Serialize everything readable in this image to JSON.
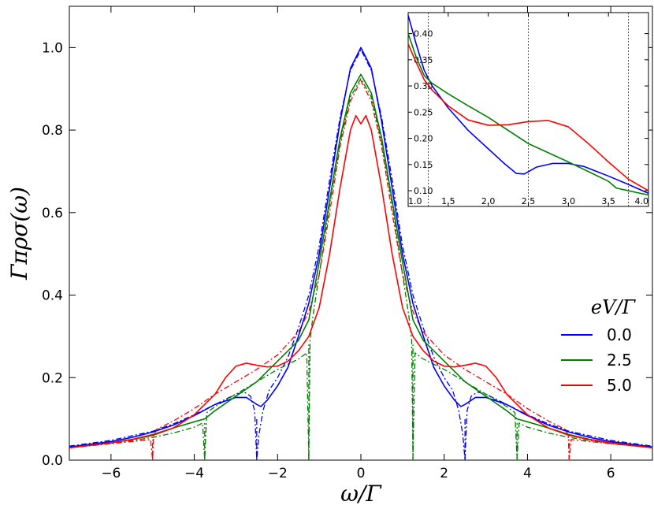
{
  "chart_data": [
    {
      "type": "line",
      "title": "",
      "xlabel": "ω/Γ",
      "ylabel": "Γπρσ(ω)",
      "xlim": [
        -7,
        7
      ],
      "ylim": [
        0,
        1.1
      ],
      "xticks": [
        "−6",
        "−4",
        "−2",
        "0",
        "2",
        "4",
        "6"
      ],
      "xtick_values": [
        -6,
        -4,
        -2,
        0,
        2,
        4,
        6
      ],
      "yticks": [
        "0.0",
        "0.2",
        "0.4",
        "0.6",
        "0.8",
        "1.0"
      ],
      "ytick_values": [
        0,
        0.2,
        0.4,
        0.6,
        0.8,
        1.0
      ],
      "grid": false,
      "legend": {
        "title": "eV/Γ",
        "placement": "right",
        "entries": [
          "0.0",
          "2.5",
          "5.0"
        ]
      },
      "series": [
        {
          "name": "0.0",
          "color": "#0000ff",
          "style": "solid",
          "x": [
            0,
            0.25,
            0.5,
            0.75,
            1,
            1.25,
            1.5,
            1.75,
            2,
            2.25,
            2.4,
            2.5,
            2.75,
            3,
            3.5,
            4,
            4.5,
            5,
            5.5,
            6,
            7
          ],
          "y": [
            1.0,
            0.95,
            0.82,
            0.66,
            0.5,
            0.38,
            0.3,
            0.225,
            0.18,
            0.145,
            0.13,
            0.135,
            0.152,
            0.152,
            0.135,
            0.108,
            0.085,
            0.068,
            0.055,
            0.045,
            0.032
          ]
        },
        {
          "name": "2.5",
          "color": "#008000",
          "style": "solid",
          "x": [
            0,
            0.25,
            0.5,
            0.75,
            1,
            1.25,
            1.5,
            2,
            2.5,
            3,
            3.5,
            3.75,
            4,
            4.5,
            5,
            5.5,
            6,
            7
          ],
          "y": [
            0.935,
            0.89,
            0.78,
            0.63,
            0.48,
            0.34,
            0.29,
            0.24,
            0.19,
            0.155,
            0.12,
            0.1,
            0.093,
            0.078,
            0.062,
            0.05,
            0.042,
            0.03
          ]
        },
        {
          "name": "5.0",
          "color": "#ff0000",
          "style": "solid",
          "x": [
            0,
            0.12,
            0.25,
            0.5,
            0.75,
            1,
            1.25,
            1.5,
            1.75,
            2,
            2.25,
            2.5,
            2.75,
            3,
            3.25,
            3.5,
            4,
            4.5,
            5,
            5.5,
            6,
            7
          ],
          "y": [
            0.815,
            0.835,
            0.8,
            0.66,
            0.5,
            0.37,
            0.3,
            0.265,
            0.24,
            0.228,
            0.226,
            0.23,
            0.235,
            0.228,
            0.2,
            0.16,
            0.11,
            0.078,
            0.06,
            0.05,
            0.042,
            0.03
          ]
        },
        {
          "name": "",
          "color": "#0000ff",
          "style": "dashdot",
          "x": [
            0,
            0.25,
            0.5,
            0.75,
            1,
            1.25,
            1.5,
            1.75,
            2,
            2.2,
            2.35,
            2.45,
            2.5,
            2.5,
            2.55,
            2.65,
            2.8,
            3,
            3.5,
            4,
            4.5,
            5,
            6,
            7
          ],
          "y": [
            0.995,
            0.945,
            0.83,
            0.68,
            0.52,
            0.4,
            0.32,
            0.25,
            0.2,
            0.17,
            0.12,
            0.06,
            0.0,
            0.0,
            0.12,
            0.155,
            0.165,
            0.16,
            0.135,
            0.11,
            0.088,
            0.07,
            0.048,
            0.034
          ]
        },
        {
          "name": "",
          "color": "#008000",
          "style": "dashdot",
          "x": [
            0,
            0.25,
            0.5,
            0.75,
            1,
            1.15,
            1.22,
            1.25,
            1.25,
            1.3,
            1.5,
            2,
            2.5,
            3,
            3.5,
            3.7,
            3.75,
            3.75,
            3.8,
            4,
            4.5,
            5,
            6,
            7
          ],
          "y": [
            0.925,
            0.88,
            0.77,
            0.62,
            0.45,
            0.35,
            0.29,
            0.0,
            0.0,
            0.26,
            0.245,
            0.22,
            0.19,
            0.16,
            0.13,
            0.115,
            0.0,
            0.0,
            0.09,
            0.08,
            0.066,
            0.055,
            0.04,
            0.03
          ]
        },
        {
          "name": "",
          "color": "#ff0000",
          "style": "dashdot",
          "x": [
            0,
            0.25,
            0.5,
            0.75,
            1,
            1.25,
            1.5,
            2,
            2.5,
            3,
            3.5,
            4,
            4.5,
            4.9,
            4.98,
            5,
            5,
            5.05,
            5.5,
            6,
            7
          ],
          "y": [
            0.92,
            0.87,
            0.76,
            0.6,
            0.45,
            0.36,
            0.31,
            0.255,
            0.22,
            0.19,
            0.16,
            0.125,
            0.095,
            0.075,
            0.06,
            0.0,
            0.0,
            0.05,
            0.045,
            0.04,
            0.03
          ]
        }
      ],
      "vertical_markers": [
        {
          "x": -5,
          "y": 0.05,
          "color": "#ff0000"
        },
        {
          "x": 5,
          "y": 0.05,
          "color": "#ff0000"
        },
        {
          "x": -3.75,
          "y": 0.09,
          "color": "#008000"
        },
        {
          "x": 3.75,
          "y": 0.09,
          "color": "#008000"
        },
        {
          "x": -1.25,
          "y": 0.28,
          "color": "#008000"
        },
        {
          "x": 1.25,
          "y": 0.28,
          "color": "#008000"
        },
        {
          "x": -2.5,
          "y": 0.1,
          "color": "#0000ff"
        },
        {
          "x": 2.5,
          "y": 0.1,
          "color": "#0000ff"
        }
      ]
    },
    {
      "type": "line",
      "title": "",
      "xlabel": "",
      "ylabel": "",
      "xlim": [
        1.0,
        4.0
      ],
      "ylim": [
        0.07,
        0.44
      ],
      "xticks": [
        "1.0",
        "1.5",
        "2.0",
        "2.5",
        "3.0",
        "3.5",
        "4.0"
      ],
      "xtick_values": [
        1.0,
        1.5,
        2.0,
        2.5,
        3.0,
        3.5,
        4.0
      ],
      "yticks": [
        "0.10",
        "0.15",
        "0.20",
        "0.25",
        "0.30",
        "0.35",
        "0.40"
      ],
      "ytick_values": [
        0.1,
        0.15,
        0.2,
        0.25,
        0.3,
        0.35,
        0.4
      ],
      "grid": false,
      "reference_lines_x": [
        1.25,
        2.5,
        3.75
      ],
      "series": [
        {
          "name": "0.0",
          "color": "#0000ff",
          "x": [
            1.0,
            1.1,
            1.2,
            1.3,
            1.5,
            1.75,
            2.0,
            2.2,
            2.35,
            2.45,
            2.6,
            2.8,
            3.0,
            3.2,
            3.5,
            3.75,
            4.0
          ],
          "y": [
            0.435,
            0.38,
            0.33,
            0.3,
            0.258,
            0.215,
            0.18,
            0.152,
            0.133,
            0.132,
            0.145,
            0.152,
            0.152,
            0.146,
            0.128,
            0.112,
            0.095
          ]
        },
        {
          "name": "2.5",
          "color": "#008000",
          "x": [
            1.0,
            1.1,
            1.2,
            1.3,
            1.5,
            1.75,
            2.0,
            2.5,
            3.0,
            3.5,
            3.6,
            3.75,
            3.9,
            4.0
          ],
          "y": [
            0.4,
            0.355,
            0.32,
            0.305,
            0.285,
            0.262,
            0.24,
            0.19,
            0.155,
            0.118,
            0.105,
            0.1,
            0.095,
            0.092
          ]
        },
        {
          "name": "5.0",
          "color": "#ff0000",
          "x": [
            1.0,
            1.1,
            1.2,
            1.3,
            1.5,
            1.75,
            2.0,
            2.25,
            2.5,
            2.75,
            3.0,
            3.25,
            3.5,
            3.75,
            4.0
          ],
          "y": [
            0.38,
            0.345,
            0.312,
            0.292,
            0.262,
            0.235,
            0.225,
            0.226,
            0.232,
            0.234,
            0.222,
            0.19,
            0.155,
            0.122,
            0.1
          ]
        }
      ]
    }
  ]
}
